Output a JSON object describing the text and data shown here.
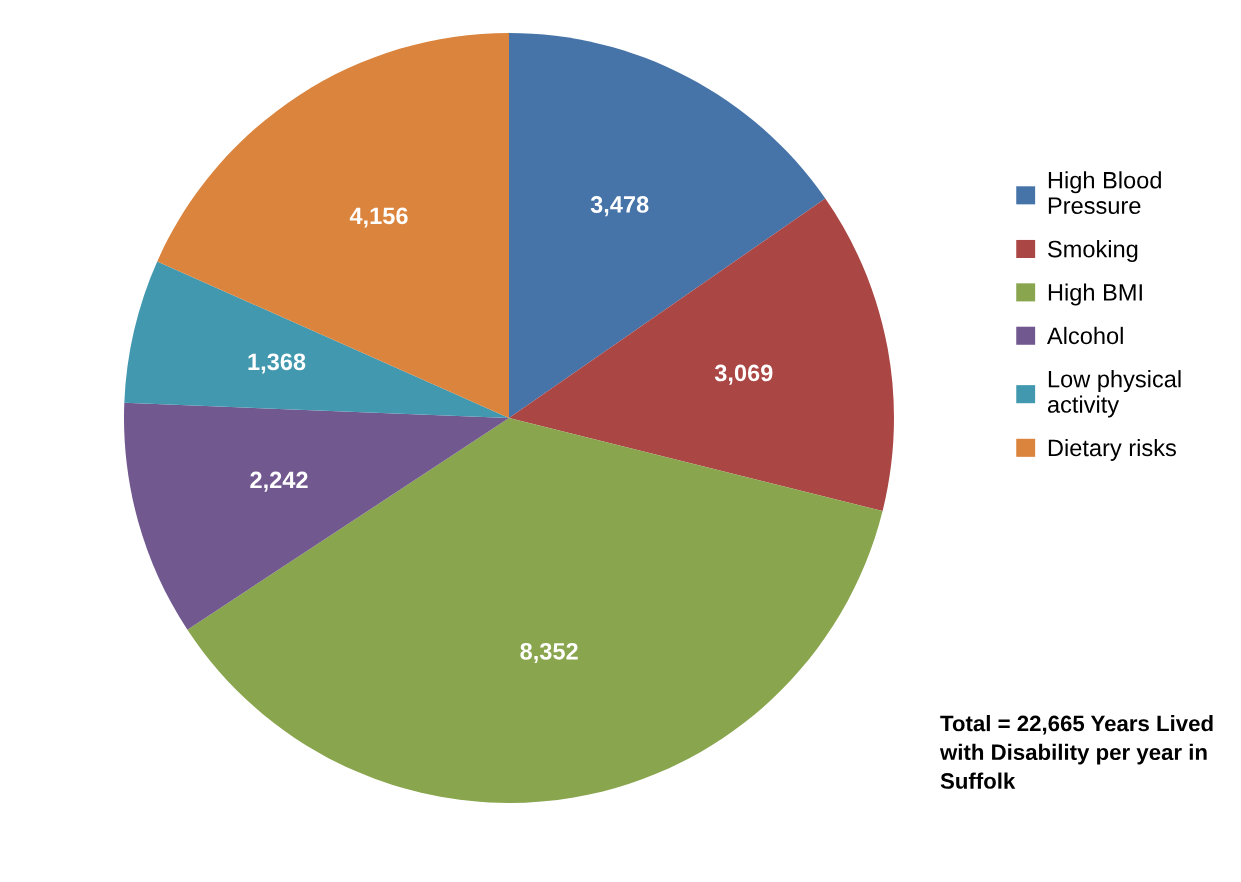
{
  "chart_data": {
    "type": "pie",
    "categories": [
      "High Blood Pressure",
      "Smoking",
      "High BMI",
      "Alcohol",
      "Low physical activity",
      "Dietary risks"
    ],
    "values": [
      3478,
      3069,
      8352,
      2242,
      1368,
      4156
    ],
    "colors": [
      "#4673a8",
      "#aa4644",
      "#89a54e",
      "#71588f",
      "#4298af",
      "#db843d"
    ],
    "value_labels": [
      "3,478",
      "3,069",
      "8,352",
      "2,242",
      "1,368",
      "4,156"
    ],
    "legend": "right",
    "annotations": [
      "Total = 22,665 Years Lived with Disability per year in Suffolk"
    ]
  }
}
